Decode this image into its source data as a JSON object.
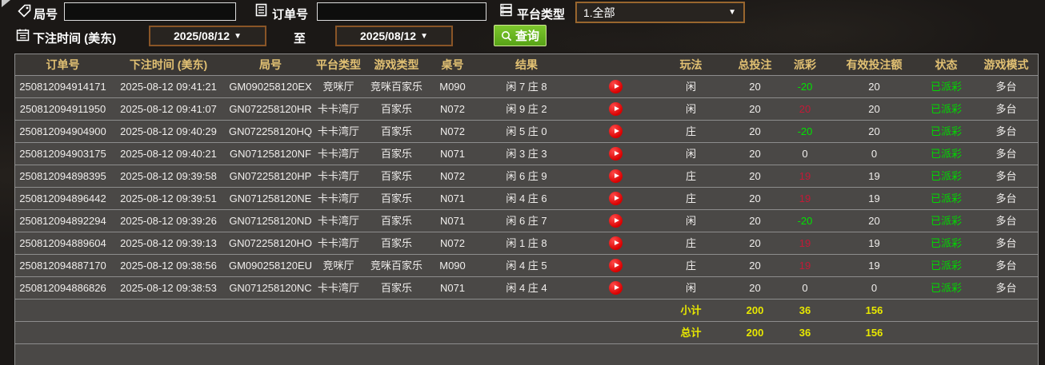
{
  "filters": {
    "round_label": "局号",
    "round_value": "",
    "order_label": "订单号",
    "order_value": "",
    "platform_label": "平台类型",
    "platform_value": "1.全部",
    "bet_time_label": "下注时间 (美东)",
    "date_from": "2025/08/12",
    "to_label": "至",
    "date_to": "2025/08/12",
    "search_label": "查询",
    "dropdown_arrow": "▼"
  },
  "icons": {
    "round": "tag-icon",
    "order": "document-icon",
    "platform": "server-icon",
    "bet_time": "calendar-icon",
    "search": "magnifier-icon",
    "play": "play-icon"
  },
  "colors": {
    "header_gold": "#e2c173",
    "win_red": "#c41937",
    "loss_green": "#00e400",
    "status_green": "#00d800",
    "total_yellow": "#e8e800",
    "button_green": "#57a317",
    "row_gray": "#4a4846"
  },
  "table": {
    "headers": [
      "订单号",
      "下注时间 (美东)",
      "局号",
      "平台类型",
      "游戏类型",
      "桌号",
      "结果",
      "",
      "玩法",
      "总投注",
      "派彩",
      "有效投注额",
      "状态",
      "游戏模式"
    ],
    "rows": [
      {
        "order": "250812094914171",
        "time": "2025-08-12 09:41:21",
        "round": "GM090258120EX",
        "platform": "竞咪厅",
        "game_type": "竞咪百家乐",
        "table_no": "M090",
        "result": "闲 7 庄 8",
        "play_type": "闲",
        "total_bet": "20",
        "payout": "-20",
        "payout_state": "loss",
        "valid_bet": "20",
        "status": "已派彩",
        "mode": "多台"
      },
      {
        "order": "250812094911950",
        "time": "2025-08-12 09:41:07",
        "round": "GN072258120HR",
        "platform": "卡卡湾厅",
        "game_type": "百家乐",
        "table_no": "N072",
        "result": "闲 9 庄 2",
        "play_type": "闲",
        "total_bet": "20",
        "payout": "20",
        "payout_state": "win",
        "valid_bet": "20",
        "status": "已派彩",
        "mode": "多台"
      },
      {
        "order": "250812094904900",
        "time": "2025-08-12 09:40:29",
        "round": "GN072258120HQ",
        "platform": "卡卡湾厅",
        "game_type": "百家乐",
        "table_no": "N072",
        "result": "闲 5 庄 0",
        "play_type": "庄",
        "total_bet": "20",
        "payout": "-20",
        "payout_state": "loss",
        "valid_bet": "20",
        "status": "已派彩",
        "mode": "多台"
      },
      {
        "order": "250812094903175",
        "time": "2025-08-12 09:40:21",
        "round": "GN071258120NF",
        "platform": "卡卡湾厅",
        "game_type": "百家乐",
        "table_no": "N071",
        "result": "闲 3 庄 3",
        "play_type": "闲",
        "total_bet": "20",
        "payout": "0",
        "payout_state": "push",
        "valid_bet": "0",
        "status": "已派彩",
        "mode": "多台"
      },
      {
        "order": "250812094898395",
        "time": "2025-08-12 09:39:58",
        "round": "GN072258120HP",
        "platform": "卡卡湾厅",
        "game_type": "百家乐",
        "table_no": "N072",
        "result": "闲 6 庄 9",
        "play_type": "庄",
        "total_bet": "20",
        "payout": "19",
        "payout_state": "win",
        "valid_bet": "19",
        "status": "已派彩",
        "mode": "多台"
      },
      {
        "order": "250812094896442",
        "time": "2025-08-12 09:39:51",
        "round": "GN071258120NE",
        "platform": "卡卡湾厅",
        "game_type": "百家乐",
        "table_no": "N071",
        "result": "闲 4 庄 6",
        "play_type": "庄",
        "total_bet": "20",
        "payout": "19",
        "payout_state": "win",
        "valid_bet": "19",
        "status": "已派彩",
        "mode": "多台"
      },
      {
        "order": "250812094892294",
        "time": "2025-08-12 09:39:26",
        "round": "GN071258120ND",
        "platform": "卡卡湾厅",
        "game_type": "百家乐",
        "table_no": "N071",
        "result": "闲 6 庄 7",
        "play_type": "闲",
        "total_bet": "20",
        "payout": "-20",
        "payout_state": "loss",
        "valid_bet": "20",
        "status": "已派彩",
        "mode": "多台"
      },
      {
        "order": "250812094889604",
        "time": "2025-08-12 09:39:13",
        "round": "GN072258120HO",
        "platform": "卡卡湾厅",
        "game_type": "百家乐",
        "table_no": "N072",
        "result": "闲 1 庄 8",
        "play_type": "庄",
        "total_bet": "20",
        "payout": "19",
        "payout_state": "win",
        "valid_bet": "19",
        "status": "已派彩",
        "mode": "多台"
      },
      {
        "order": "250812094887170",
        "time": "2025-08-12 09:38:56",
        "round": "GM090258120EU",
        "platform": "竞咪厅",
        "game_type": "竞咪百家乐",
        "table_no": "M090",
        "result": "闲 4 庄 5",
        "play_type": "庄",
        "total_bet": "20",
        "payout": "19",
        "payout_state": "win",
        "valid_bet": "19",
        "status": "已派彩",
        "mode": "多台"
      },
      {
        "order": "250812094886826",
        "time": "2025-08-12 09:38:53",
        "round": "GN071258120NC",
        "platform": "卡卡湾厅",
        "game_type": "百家乐",
        "table_no": "N071",
        "result": "闲 4 庄 4",
        "play_type": "闲",
        "total_bet": "20",
        "payout": "0",
        "payout_state": "push",
        "valid_bet": "0",
        "status": "已派彩",
        "mode": "多台"
      }
    ],
    "subtotal": {
      "label": "小计",
      "total_bet": "200",
      "payout": "36",
      "valid_bet": "156"
    },
    "total": {
      "label": "总计",
      "total_bet": "200",
      "payout": "36",
      "valid_bet": "156"
    }
  }
}
